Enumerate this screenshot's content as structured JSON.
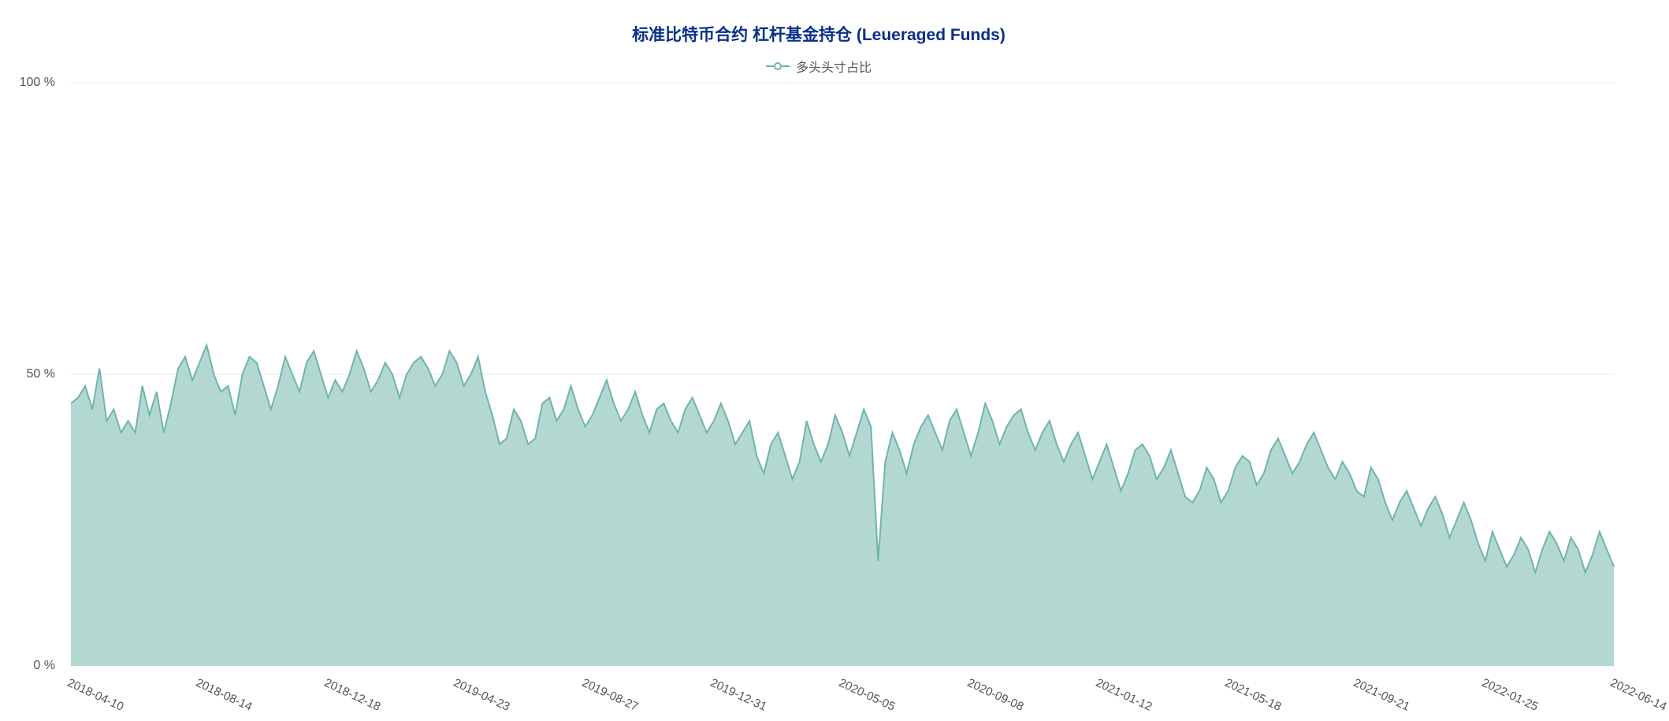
{
  "chart": {
    "type": "area",
    "title": "标准比特币合约 杠杆基金持仓 (Leueraged Funds)",
    "title_color": "#0a2f8a",
    "title_fontsize": 21,
    "legend": {
      "label": "多头头寸占比",
      "series_color": "#6fb5ab",
      "fill_color": "#a5d1c9",
      "text_color": "#555555"
    },
    "x_axis": {
      "ticks": [
        "2018-04-10",
        "2018-08-14",
        "2018-12-18",
        "2019-04-23",
        "2019-08-27",
        "2019-12-31",
        "2020-05-05",
        "2020-09-08",
        "2021-01-12",
        "2021-05-18",
        "2021-09-21",
        "2022-01-25",
        "2022-06-14"
      ],
      "label_color": "#555555",
      "label_fontsize": 15
    },
    "y_axis": {
      "ticks": [
        0,
        50,
        100
      ],
      "tick_labels": [
        "0 %",
        "50 %",
        "100 %"
      ],
      "ylim": [
        0,
        100
      ],
      "label_color": "#555555",
      "label_fontsize": 16,
      "grid_color": "#e8e8e8"
    },
    "series": {
      "name": "多头头寸占比",
      "color_line": "#6fb5ab",
      "color_fill": "#a5d1c9",
      "fill_opacity": 0.85,
      "line_width": 2,
      "values": [
        45,
        46,
        48,
        44,
        51,
        42,
        44,
        40,
        42,
        40,
        48,
        43,
        47,
        40,
        45,
        51,
        53,
        49,
        52,
        55,
        50,
        47,
        48,
        43,
        50,
        53,
        52,
        48,
        44,
        48,
        53,
        50,
        47,
        52,
        54,
        50,
        46,
        49,
        47,
        50,
        54,
        51,
        47,
        49,
        52,
        50,
        46,
        50,
        52,
        53,
        51,
        48,
        50,
        54,
        52,
        48,
        50,
        53,
        47,
        43,
        38,
        39,
        44,
        42,
        38,
        39,
        45,
        46,
        42,
        44,
        48,
        44,
        41,
        43,
        46,
        49,
        45,
        42,
        44,
        47,
        43,
        40,
        44,
        45,
        42,
        40,
        44,
        46,
        43,
        40,
        42,
        45,
        42,
        38,
        40,
        42,
        36,
        33,
        38,
        40,
        36,
        32,
        35,
        42,
        38,
        35,
        38,
        43,
        40,
        36,
        40,
        44,
        41,
        18,
        35,
        40,
        37,
        33,
        38,
        41,
        43,
        40,
        37,
        42,
        44,
        40,
        36,
        40,
        45,
        42,
        38,
        41,
        43,
        44,
        40,
        37,
        40,
        42,
        38,
        35,
        38,
        40,
        36,
        32,
        35,
        38,
        34,
        30,
        33,
        37,
        38,
        36,
        32,
        34,
        37,
        33,
        29,
        28,
        30,
        34,
        32,
        28,
        30,
        34,
        36,
        35,
        31,
        33,
        37,
        39,
        36,
        33,
        35,
        38,
        40,
        37,
        34,
        32,
        35,
        33,
        30,
        29,
        34,
        32,
        28,
        25,
        28,
        30,
        27,
        24,
        27,
        29,
        26,
        22,
        25,
        28,
        25,
        21,
        18,
        23,
        20,
        17,
        19,
        22,
        20,
        16,
        20,
        23,
        21,
        18,
        22,
        20,
        16,
        19,
        23,
        20,
        17
      ]
    },
    "background_color": "#ffffff",
    "axis_line_color": "#cccccc"
  }
}
